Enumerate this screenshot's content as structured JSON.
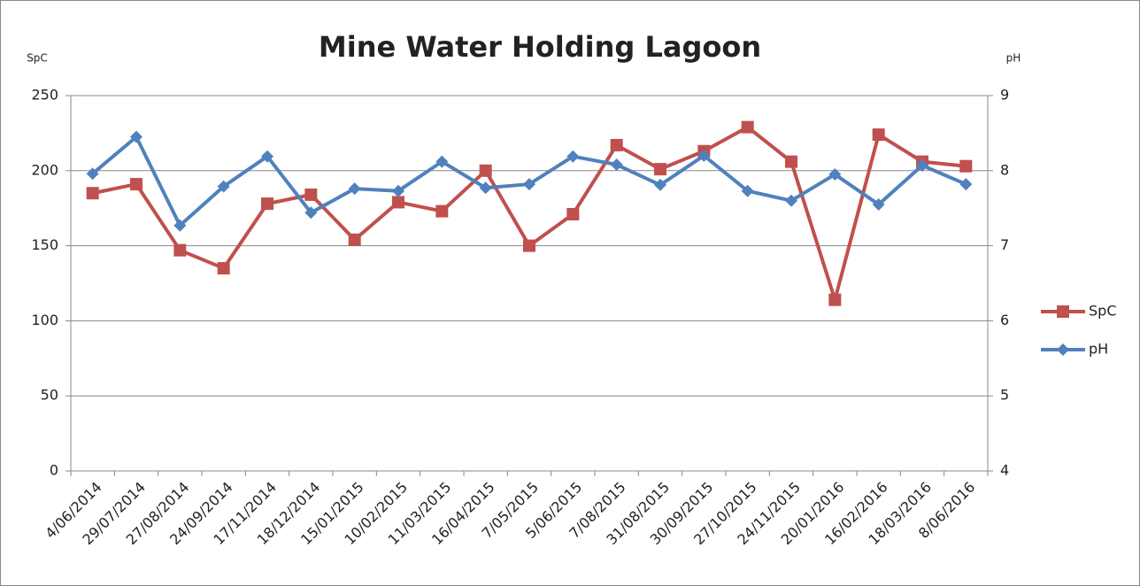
{
  "chart_data": {
    "type": "line",
    "title": "Mine Water Holding Lagoon",
    "y_label": "SpC",
    "y2_label": "pH",
    "categories": [
      "4/06/2014",
      "29/07/2014",
      "27/08/2014",
      "24/09/2014",
      "17/11/2014",
      "18/12/2014",
      "15/01/2015",
      "10/02/2015",
      "11/03/2015",
      "16/04/2015",
      "7/05/2015",
      "5/06/2015",
      "7/08/2015",
      "31/08/2015",
      "30/09/2015",
      "27/10/2015",
      "24/11/2015",
      "20/01/2016",
      "16/02/2016",
      "18/03/2016",
      "8/06/2016"
    ],
    "series": [
      {
        "name": "SpC",
        "color": "#c0504d",
        "marker": "square",
        "values": [
          185,
          191,
          147,
          135,
          178,
          184,
          154,
          179,
          173,
          200,
          150,
          171,
          217,
          201,
          213,
          229,
          206,
          114,
          224,
          206,
          203
        ]
      },
      {
        "name": "pH",
        "color": "#4f81bd",
        "marker": "diamond",
        "axis": "y2",
        "values": [
          7.96,
          8.45,
          7.27,
          7.79,
          8.19,
          7.44,
          7.76,
          7.73,
          8.12,
          7.77,
          7.82,
          8.19,
          8.08,
          7.81,
          8.2,
          7.73,
          7.6,
          7.95,
          7.55,
          8.07,
          7.82
        ]
      }
    ],
    "ylim": [
      0,
      250
    ],
    "yticks": [
      0,
      50,
      100,
      150,
      200,
      250
    ],
    "y2lim": [
      4,
      9
    ],
    "y2ticks": [
      4,
      5,
      6,
      7,
      8,
      9
    ],
    "grid": true,
    "legend": "right"
  }
}
